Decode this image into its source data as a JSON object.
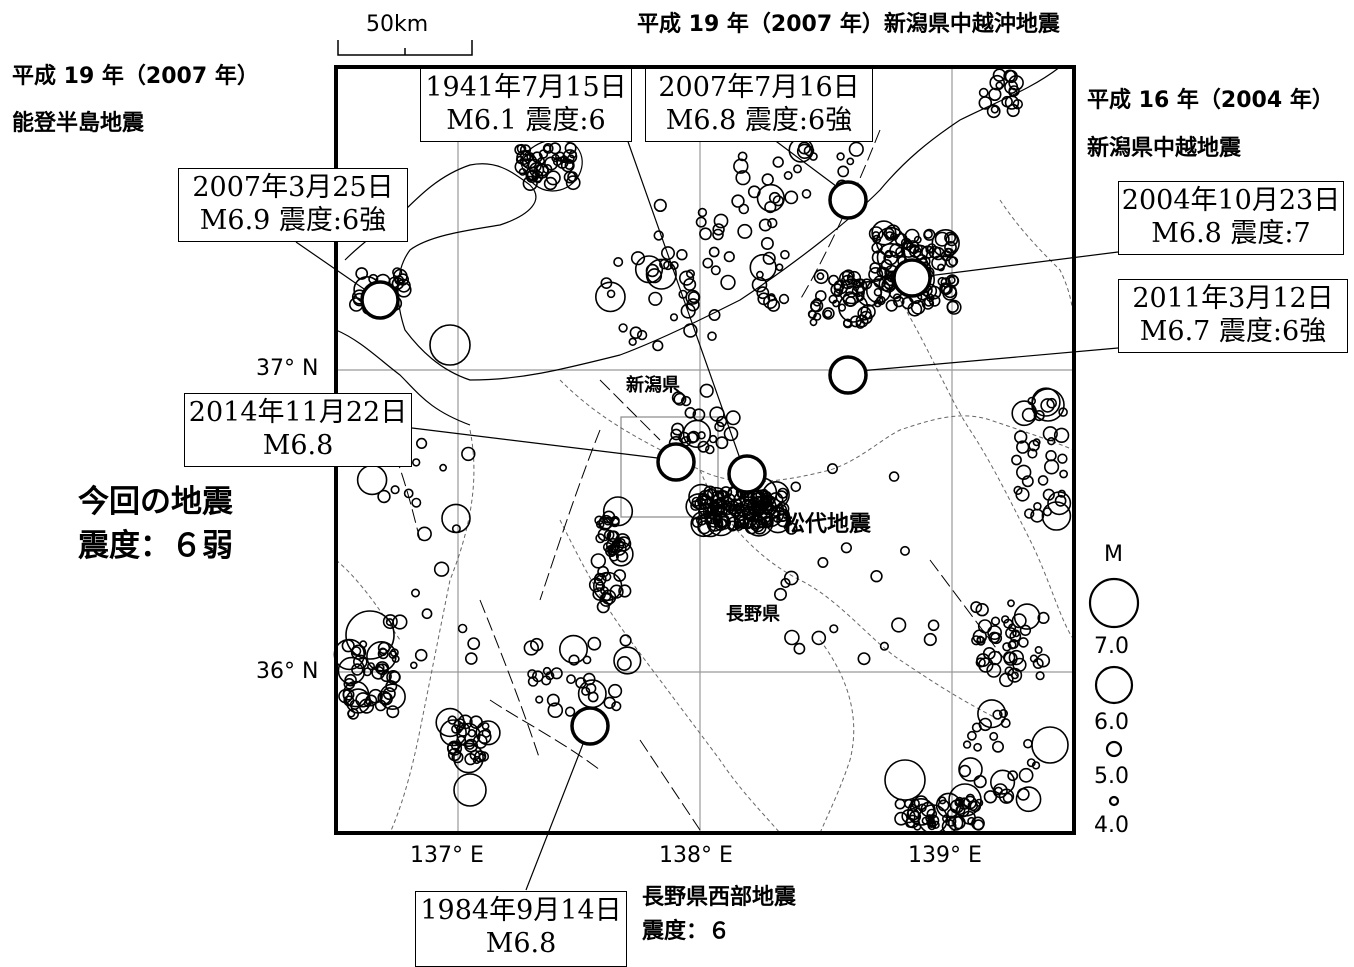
{
  "scale_label": "50km",
  "top_titles": {
    "noto": [
      "平成 19 年（2007 年）",
      "能登半島地震"
    ],
    "chuetsu_oki": "平成 19 年（2007 年）新潟県中越沖地震",
    "chuetsu": [
      "平成 16 年（2004 年）",
      "新潟県中越地震"
    ],
    "nagano_seibu": [
      "長野県西部地震",
      "震度：６"
    ],
    "current": [
      "今回の地震",
      "震度：６弱"
    ]
  },
  "event_boxes": [
    {
      "id": "1941",
      "lines": [
        "1941年7月15日",
        "M6.1 震度:6"
      ]
    },
    {
      "id": "2007_07",
      "lines": [
        "2007年7月16日",
        "M6.8 震度:6強"
      ]
    },
    {
      "id": "2007_03",
      "lines": [
        "2007年3月25日",
        "M6.9 震度:6強"
      ]
    },
    {
      "id": "2004",
      "lines": [
        "2004年10月23日",
        "M6.8 震度:7"
      ]
    },
    {
      "id": "2011",
      "lines": [
        "2011年3月12日",
        "M6.7 震度:6強"
      ]
    },
    {
      "id": "2014",
      "lines": [
        "2014年11月22日",
        "M6.8"
      ]
    },
    {
      "id": "1984",
      "lines": [
        "1984年9月14日",
        "M6.8"
      ]
    }
  ],
  "map_labels": {
    "niigata": "新潟県",
    "nagano": "長野県",
    "matsushiro": "松代地震"
  },
  "axes": {
    "lat": [
      "37° N",
      "36° N"
    ],
    "lon": [
      "137° E",
      "138° E",
      "139° E"
    ]
  },
  "legend": {
    "title": "M",
    "magnitudes": [
      "7.0",
      "6.0",
      "5.0",
      "4.0"
    ]
  },
  "colors": {
    "ink": "#000000",
    "background": "#ffffff",
    "road": "#999999"
  }
}
